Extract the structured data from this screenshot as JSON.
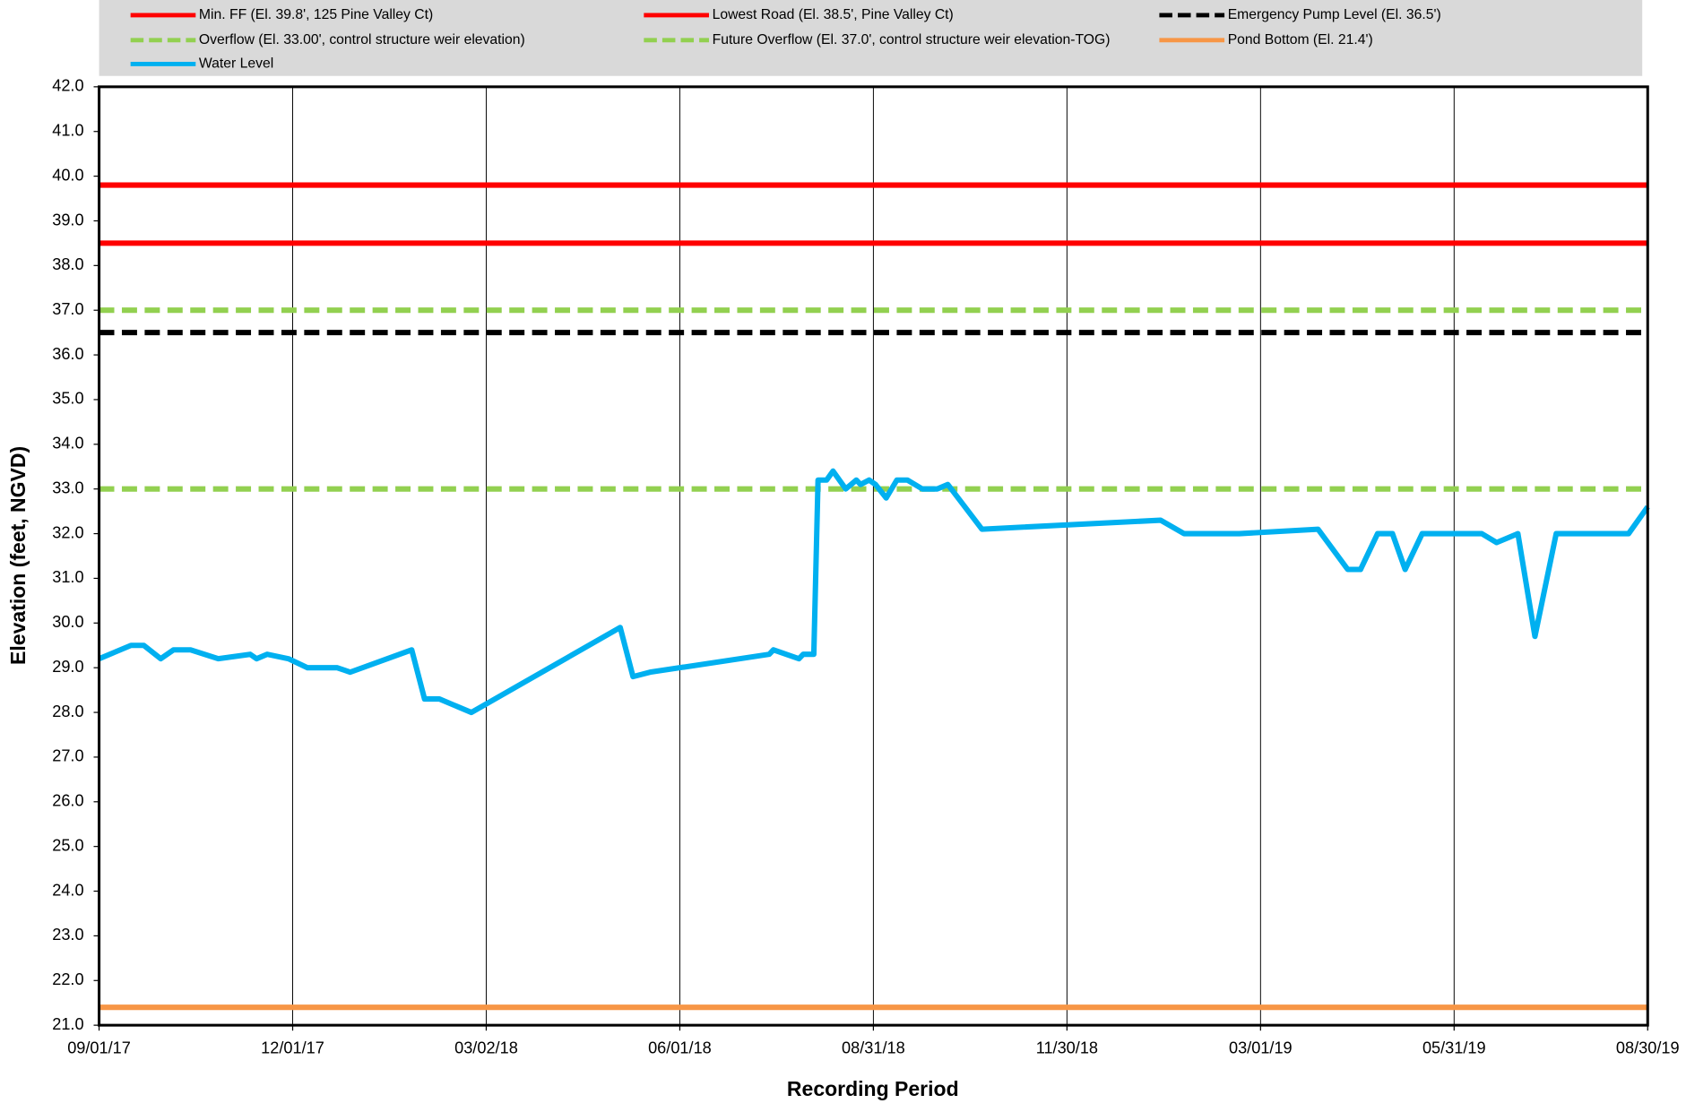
{
  "chart_data": {
    "type": "line",
    "xlabel": "Recording Period",
    "ylabel": "Elevation (feet, NGVD)",
    "xlim": [
      "09/01/17",
      "08/30/19"
    ],
    "xticks": [
      "09/01/17",
      "12/01/17",
      "03/02/18",
      "06/01/18",
      "08/31/18",
      "11/30/18",
      "03/01/19",
      "05/31/19",
      "08/30/19"
    ],
    "ylim": [
      21,
      42
    ],
    "yticks": [
      {
        "value": 21,
        "label": "21.0"
      },
      {
        "value": 22,
        "label": "22.0"
      },
      {
        "value": 23,
        "label": "23.0"
      },
      {
        "value": 24,
        "label": "24.0"
      },
      {
        "value": 25,
        "label": "25.0"
      },
      {
        "value": 26,
        "label": "26.0"
      },
      {
        "value": 27,
        "label": "27.0"
      },
      {
        "value": 28,
        "label": "28.0"
      },
      {
        "value": 29,
        "label": "29.0"
      },
      {
        "value": 30,
        "label": "30.0"
      },
      {
        "value": 31,
        "label": "31.0"
      },
      {
        "value": 32,
        "label": "32.0"
      },
      {
        "value": 33,
        "label": "33.0"
      },
      {
        "value": 34,
        "label": "34.0"
      },
      {
        "value": 35,
        "label": "35.0"
      },
      {
        "value": 36,
        "label": "36.0"
      },
      {
        "value": 37,
        "label": "37.0"
      },
      {
        "value": 38,
        "label": "38.0"
      },
      {
        "value": 39,
        "label": "39.0"
      },
      {
        "value": 40,
        "label": "40.0"
      },
      {
        "value": 41,
        "label": "41.0"
      },
      {
        "value": 42,
        "label": "42.0"
      }
    ],
    "xgrid": true,
    "reference_lines": [
      {
        "name": "Min. FF (El. 39.8', 125 Pine Valley Ct)",
        "value": 39.8,
        "color": "#ff0000",
        "dashed": false
      },
      {
        "name": "Lowest Road (El. 38.5', Pine Valley Ct)",
        "value": 38.5,
        "color": "#ff0000",
        "dashed": false
      },
      {
        "name": "Emergency Pump Level (El. 36.5')",
        "value": 36.5,
        "color": "#000000",
        "dashed": true
      },
      {
        "name": "Overflow (El. 33.00', control structure weir elevation)",
        "value": 33.0,
        "color": "#92d050",
        "dashed": true
      },
      {
        "name": "Future Overflow (El. 37.0', control structure weir elevation-TOG)",
        "value": 37.0,
        "color": "#92d050",
        "dashed": true
      },
      {
        "name": "Pond Bottom (El. 21.4')",
        "value": 21.4,
        "color": "#f79646",
        "dashed": false
      }
    ],
    "x": [
      "09/01/17",
      "09/16/17",
      "09/22/17",
      "09/30/17",
      "10/06/17",
      "10/14/17",
      "10/27/17",
      "11/11/17",
      "11/14/17",
      "11/19/17",
      "11/29/17",
      "12/08/17",
      "12/22/17",
      "12/28/17",
      "01/26/18",
      "02/01/18",
      "02/08/18",
      "02/23/18",
      "05/04/18",
      "05/10/18",
      "05/18/18",
      "07/13/18",
      "07/15/18",
      "07/27/18",
      "07/29/18",
      "08/03/18",
      "08/05/18",
      "08/09/18",
      "08/12/18",
      "08/18/18",
      "08/23/18",
      "08/25/18",
      "08/29/18",
      "09/01/18",
      "09/06/18",
      "09/11/18",
      "09/16/18",
      "09/23/18",
      "09/30/18",
      "10/05/18",
      "10/21/18",
      "01/13/19",
      "01/24/19",
      "02/19/19",
      "03/28/19",
      "04/11/19",
      "04/17/19",
      "04/25/19",
      "05/02/19",
      "05/08/19",
      "05/16/19",
      "06/13/19",
      "06/20/19",
      "06/30/19",
      "07/08/19",
      "07/18/19",
      "08/21/19",
      "08/30/19"
    ],
    "series": [
      {
        "name": "Water Level",
        "color": "#00b0f0",
        "values": [
          29.2,
          29.5,
          29.5,
          29.2,
          29.4,
          29.4,
          29.2,
          29.3,
          29.2,
          29.3,
          29.2,
          29.0,
          29.0,
          28.9,
          29.4,
          28.3,
          28.3,
          28.0,
          29.9,
          28.8,
          28.9,
          29.3,
          29.4,
          29.2,
          29.3,
          29.3,
          33.2,
          33.2,
          33.4,
          33.0,
          33.2,
          33.1,
          33.2,
          33.1,
          32.8,
          33.2,
          33.2,
          33.0,
          33.0,
          33.1,
          32.1,
          32.3,
          32.0,
          32.0,
          32.1,
          31.2,
          31.2,
          32.0,
          32.0,
          31.2,
          32.0,
          32.0,
          31.8,
          32.0,
          29.7,
          32.0,
          32.0,
          32.6
        ]
      }
    ]
  }
}
